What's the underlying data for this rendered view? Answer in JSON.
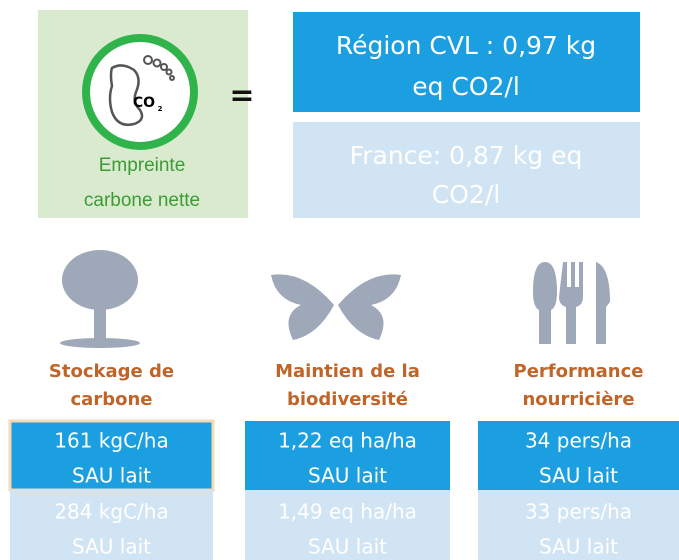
{
  "footprint": {
    "icon_text": "CO",
    "icon_subscript": "2",
    "label": [
      "Empreinte",
      "carbone nette"
    ],
    "equals": "=",
    "region": [
      "Région CVL : 0,97 kg",
      "eq CO2/l"
    ],
    "france": [
      "France: 0,87 kg eq",
      "CO2/l"
    ]
  },
  "indicators": [
    {
      "label": [
        "Stockage de",
        "carbone"
      ],
      "region": [
        "161 kgC/ha",
        "SAU lait"
      ],
      "france": [
        "284 kgC/ha",
        "SAU lait"
      ]
    },
    {
      "label": [
        "Maintien de la",
        "biodiversité"
      ],
      "region": [
        "1,22 eq ha/ha",
        "SAU lait"
      ],
      "france": [
        "1,49 eq ha/ha",
        "SAU lait"
      ]
    },
    {
      "label": [
        "Performance",
        "nourricière"
      ],
      "region": [
        "34 pers/ha",
        "SAU lait"
      ],
      "france": [
        "33 pers/ha",
        "SAU lait"
      ]
    }
  ]
}
